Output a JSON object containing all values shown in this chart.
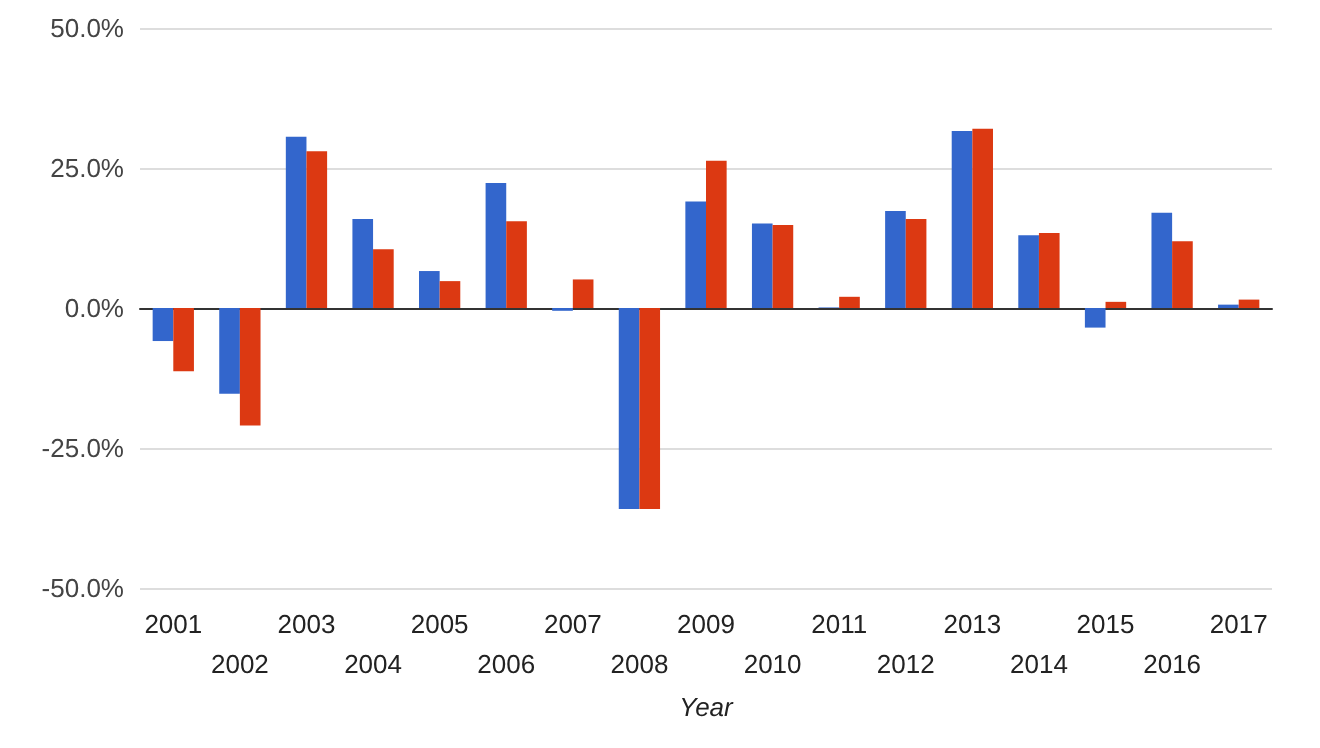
{
  "chart_data": {
    "type": "bar",
    "xlabel": "Year",
    "categories": [
      "2001",
      "2002",
      "2003",
      "2004",
      "2005",
      "2006",
      "2007",
      "2008",
      "2009",
      "2010",
      "2011",
      "2012",
      "2013",
      "2014",
      "2015",
      "2016",
      "2017"
    ],
    "series": [
      {
        "color": "#3366cc",
        "values": [
          -5.9,
          -15.3,
          30.6,
          15.9,
          6.6,
          22.3,
          -0.5,
          -35.9,
          19.0,
          15.1,
          0.1,
          17.3,
          31.6,
          13.0,
          -3.5,
          17.0,
          0.6
        ]
      },
      {
        "color": "#dc3912",
        "values": [
          -11.3,
          -21.0,
          28.0,
          10.5,
          4.8,
          15.5,
          5.1,
          -35.9,
          26.3,
          14.8,
          2.0,
          15.9,
          32.0,
          13.4,
          1.1,
          11.9,
          1.5
        ]
      }
    ],
    "ylim": [
      -50,
      50
    ],
    "yticks": [
      {
        "value": -50,
        "label": "-50.0%"
      },
      {
        "value": -25,
        "label": "-25.0%"
      },
      {
        "value": 0,
        "label": "0.0%"
      },
      {
        "value": 25,
        "label": "25.0%"
      },
      {
        "value": 50,
        "label": "50.0%"
      }
    ],
    "grid": "y"
  }
}
